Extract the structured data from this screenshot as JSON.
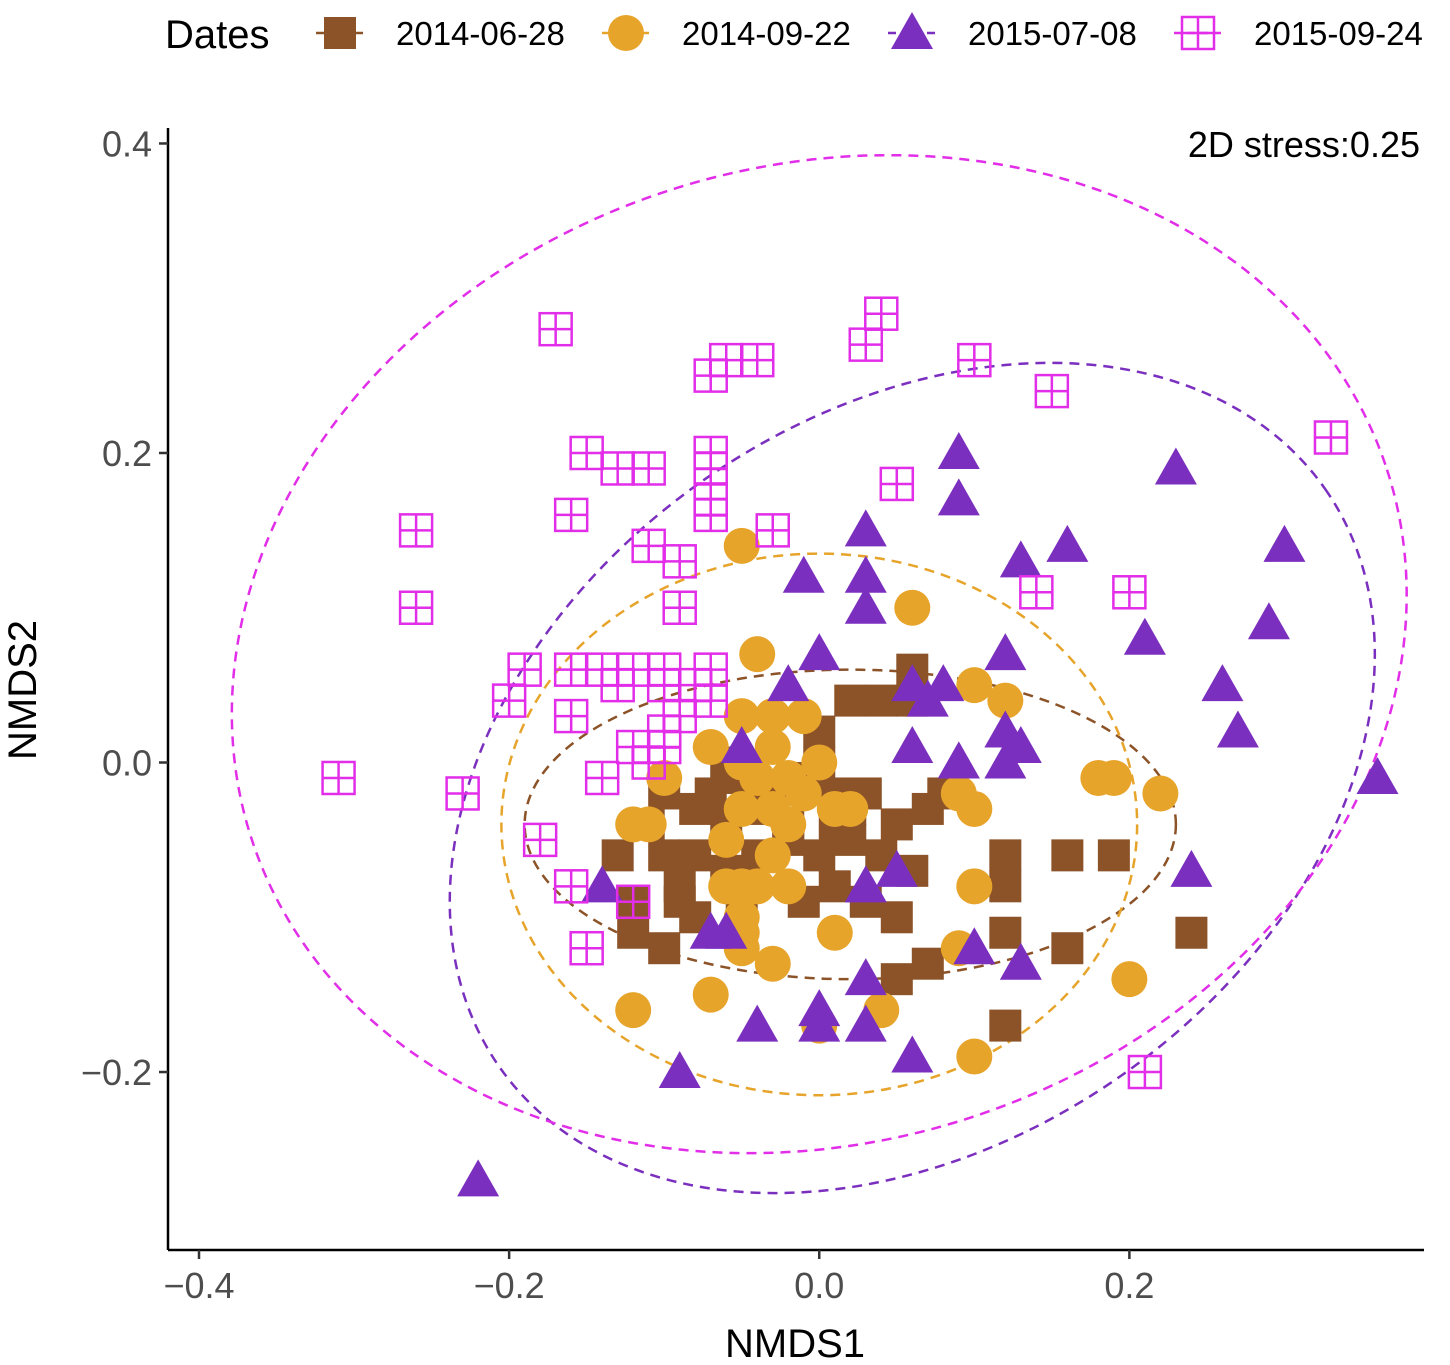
{
  "chart_data": {
    "type": "scatter",
    "title": "",
    "xlabel": "NMDS1",
    "ylabel": "NMDS2",
    "xlim": [
      -0.42,
      0.39
    ],
    "ylim": [
      -0.315,
      0.41
    ],
    "xticks": [
      -0.4,
      -0.2,
      0.0,
      0.2
    ],
    "yticks": [
      -0.2,
      0.0,
      0.2,
      0.4
    ],
    "xtick_labels": [
      "−0.4",
      "−0.2",
      "0.0",
      "0.2"
    ],
    "ytick_labels": [
      "−0.2",
      "0.0",
      "0.2",
      "0.4"
    ],
    "annotation": "2D stress:0.25",
    "legend": {
      "title": "Dates",
      "position": "top"
    },
    "series": [
      {
        "name": "2014-06-28",
        "color": "#8c5328",
        "marker": "square",
        "ellipse": {
          "cx": 0.02,
          "cy": -0.04,
          "rx": 0.21,
          "ry": 0.1,
          "angle": 0
        },
        "points": [
          [
            0.06,
            0.06
          ],
          [
            0.04,
            0.04
          ],
          [
            0.02,
            0.04
          ],
          [
            0.0,
            0.02
          ],
          [
            0.03,
            -0.02
          ],
          [
            0.08,
            -0.02
          ],
          [
            0.07,
            -0.03
          ],
          [
            0.05,
            -0.04
          ],
          [
            0.02,
            -0.03
          ],
          [
            0.01,
            -0.02
          ],
          [
            0.0,
            0.0
          ],
          [
            -0.01,
            -0.01
          ],
          [
            -0.03,
            -0.02
          ],
          [
            -0.05,
            -0.01
          ],
          [
            -0.07,
            -0.02
          ],
          [
            -0.08,
            -0.03
          ],
          [
            -0.1,
            -0.02
          ],
          [
            -0.11,
            -0.04
          ],
          [
            -0.13,
            -0.06
          ],
          [
            -0.1,
            -0.06
          ],
          [
            -0.08,
            -0.06
          ],
          [
            -0.06,
            -0.07
          ],
          [
            -0.04,
            -0.06
          ],
          [
            -0.02,
            -0.05
          ],
          [
            0.0,
            -0.06
          ],
          [
            0.02,
            -0.05
          ],
          [
            0.04,
            -0.06
          ],
          [
            0.06,
            -0.07
          ],
          [
            0.01,
            -0.08
          ],
          [
            -0.01,
            -0.09
          ],
          [
            -0.05,
            -0.09
          ],
          [
            -0.08,
            -0.1
          ],
          [
            -0.1,
            -0.12
          ],
          [
            -0.12,
            -0.09
          ],
          [
            -0.09,
            -0.08
          ],
          [
            0.03,
            -0.09
          ],
          [
            0.05,
            -0.1
          ],
          [
            0.12,
            -0.06
          ],
          [
            0.12,
            -0.08
          ],
          [
            0.12,
            -0.11
          ],
          [
            0.16,
            -0.06
          ],
          [
            0.19,
            -0.06
          ],
          [
            0.16,
            -0.12
          ],
          [
            0.24,
            -0.11
          ],
          [
            0.07,
            -0.13
          ],
          [
            0.05,
            -0.14
          ],
          [
            0.12,
            -0.17
          ],
          [
            -0.12,
            -0.11
          ],
          [
            -0.09,
            -0.09
          ],
          [
            -0.06,
            -0.04
          ],
          [
            -0.04,
            -0.03
          ],
          [
            0.06,
            0.04
          ],
          [
            -0.06,
            0.0
          ],
          [
            -0.02,
            -0.04
          ],
          [
            0.01,
            -0.04
          ]
        ]
      },
      {
        "name": "2014-09-22",
        "color": "#e7a42b",
        "marker": "circle",
        "ellipse": {
          "cx": 0.0,
          "cy": -0.04,
          "rx": 0.205,
          "ry": 0.175,
          "angle": 0
        },
        "points": [
          [
            -0.05,
            0.14
          ],
          [
            0.06,
            0.1
          ],
          [
            -0.04,
            0.07
          ],
          [
            0.1,
            0.05
          ],
          [
            0.12,
            0.04
          ],
          [
            -0.05,
            0.03
          ],
          [
            -0.03,
            0.03
          ],
          [
            -0.01,
            0.03
          ],
          [
            -0.07,
            0.01
          ],
          [
            -0.05,
            0.0
          ],
          [
            -0.03,
            0.01
          ],
          [
            -0.02,
            -0.01
          ],
          [
            0.0,
            0.0
          ],
          [
            -0.1,
            -0.01
          ],
          [
            -0.04,
            -0.01
          ],
          [
            -0.01,
            -0.02
          ],
          [
            0.01,
            -0.03
          ],
          [
            0.02,
            -0.03
          ],
          [
            -0.03,
            -0.03
          ],
          [
            -0.05,
            -0.03
          ],
          [
            -0.12,
            -0.04
          ],
          [
            -0.11,
            -0.04
          ],
          [
            -0.02,
            -0.04
          ],
          [
            -0.06,
            -0.05
          ],
          [
            -0.03,
            -0.06
          ],
          [
            -0.06,
            -0.08
          ],
          [
            -0.05,
            -0.08
          ],
          [
            -0.04,
            -0.08
          ],
          [
            -0.02,
            -0.08
          ],
          [
            -0.05,
            -0.1
          ],
          [
            -0.05,
            -0.11
          ],
          [
            -0.05,
            -0.12
          ],
          [
            -0.03,
            -0.13
          ],
          [
            0.01,
            -0.11
          ],
          [
            0.09,
            -0.02
          ],
          [
            0.1,
            -0.03
          ],
          [
            0.1,
            -0.08
          ],
          [
            0.18,
            -0.01
          ],
          [
            0.19,
            -0.01
          ],
          [
            0.22,
            -0.02
          ],
          [
            0.09,
            -0.12
          ],
          [
            0.2,
            -0.14
          ],
          [
            -0.12,
            -0.16
          ],
          [
            -0.07,
            -0.15
          ],
          [
            0.04,
            -0.16
          ],
          [
            0.0,
            -0.17
          ],
          [
            0.1,
            -0.19
          ]
        ]
      },
      {
        "name": "2015-07-08",
        "color": "#7b2fbf",
        "marker": "triangle",
        "ellipse": {
          "cx": 0.06,
          "cy": -0.01,
          "rx": 0.325,
          "ry": 0.235,
          "angle": 35
        },
        "points": [
          [
            0.09,
            0.2
          ],
          [
            0.23,
            0.19
          ],
          [
            0.09,
            0.17
          ],
          [
            0.03,
            0.15
          ],
          [
            0.13,
            0.13
          ],
          [
            0.16,
            0.14
          ],
          [
            0.3,
            0.14
          ],
          [
            -0.01,
            0.12
          ],
          [
            0.03,
            0.12
          ],
          [
            0.03,
            0.1
          ],
          [
            0.29,
            0.09
          ],
          [
            0.0,
            0.07
          ],
          [
            0.12,
            0.07
          ],
          [
            0.21,
            0.08
          ],
          [
            0.26,
            0.05
          ],
          [
            -0.02,
            0.05
          ],
          [
            0.06,
            0.05
          ],
          [
            0.07,
            0.04
          ],
          [
            0.08,
            0.05
          ],
          [
            0.12,
            0.02
          ],
          [
            0.13,
            0.01
          ],
          [
            0.06,
            0.01
          ],
          [
            0.09,
            0.0
          ],
          [
            0.12,
            0.0
          ],
          [
            0.27,
            0.02
          ],
          [
            0.36,
            -0.01
          ],
          [
            0.09,
            0.0
          ],
          [
            0.24,
            -0.07
          ],
          [
            0.05,
            -0.07
          ],
          [
            0.03,
            -0.08
          ],
          [
            -0.14,
            -0.08
          ],
          [
            -0.07,
            -0.11
          ],
          [
            0.1,
            -0.12
          ],
          [
            0.13,
            -0.13
          ],
          [
            0.03,
            -0.14
          ],
          [
            0.0,
            -0.16
          ],
          [
            0.0,
            -0.17
          ],
          [
            -0.04,
            -0.17
          ],
          [
            0.03,
            -0.17
          ],
          [
            0.06,
            -0.19
          ],
          [
            -0.09,
            -0.2
          ],
          [
            -0.22,
            -0.27
          ],
          [
            -0.05,
            0.01
          ],
          [
            -0.06,
            -0.11
          ]
        ]
      },
      {
        "name": "2015-09-24",
        "color": "#e22de9",
        "marker": "square-plus",
        "ellipse": {
          "cx": 0.0,
          "cy": 0.07,
          "rx": 0.385,
          "ry": 0.315,
          "angle": 18
        },
        "points": [
          [
            -0.17,
            0.28
          ],
          [
            -0.07,
            0.25
          ],
          [
            -0.06,
            0.26
          ],
          [
            -0.04,
            0.26
          ],
          [
            0.03,
            0.27
          ],
          [
            0.04,
            0.29
          ],
          [
            0.1,
            0.26
          ],
          [
            0.15,
            0.24
          ],
          [
            0.33,
            0.21
          ],
          [
            -0.15,
            0.2
          ],
          [
            -0.13,
            0.19
          ],
          [
            -0.11,
            0.19
          ],
          [
            -0.07,
            0.2
          ],
          [
            -0.07,
            0.19
          ],
          [
            -0.07,
            0.17
          ],
          [
            0.05,
            0.18
          ],
          [
            -0.26,
            0.15
          ],
          [
            -0.16,
            0.16
          ],
          [
            -0.07,
            0.16
          ],
          [
            -0.03,
            0.15
          ],
          [
            -0.11,
            0.14
          ],
          [
            -0.09,
            0.13
          ],
          [
            -0.09,
            0.1
          ],
          [
            -0.26,
            0.1
          ],
          [
            0.14,
            0.11
          ],
          [
            0.2,
            0.11
          ],
          [
            -0.19,
            0.06
          ],
          [
            -0.16,
            0.06
          ],
          [
            -0.14,
            0.06
          ],
          [
            -0.12,
            0.06
          ],
          [
            -0.1,
            0.06
          ],
          [
            -0.07,
            0.06
          ],
          [
            -0.2,
            0.04
          ],
          [
            -0.16,
            0.03
          ],
          [
            -0.13,
            0.05
          ],
          [
            -0.1,
            0.05
          ],
          [
            -0.08,
            0.05
          ],
          [
            -0.07,
            0.04
          ],
          [
            -0.09,
            0.03
          ],
          [
            -0.1,
            0.02
          ],
          [
            -0.1,
            0.01
          ],
          [
            -0.11,
            0.0
          ],
          [
            -0.12,
            0.01
          ],
          [
            -0.31,
            -0.01
          ],
          [
            -0.23,
            -0.02
          ],
          [
            -0.14,
            -0.01
          ],
          [
            -0.18,
            -0.05
          ],
          [
            -0.16,
            -0.08
          ],
          [
            -0.12,
            -0.09
          ],
          [
            -0.15,
            -0.12
          ],
          [
            0.21,
            -0.2
          ]
        ]
      }
    ]
  }
}
